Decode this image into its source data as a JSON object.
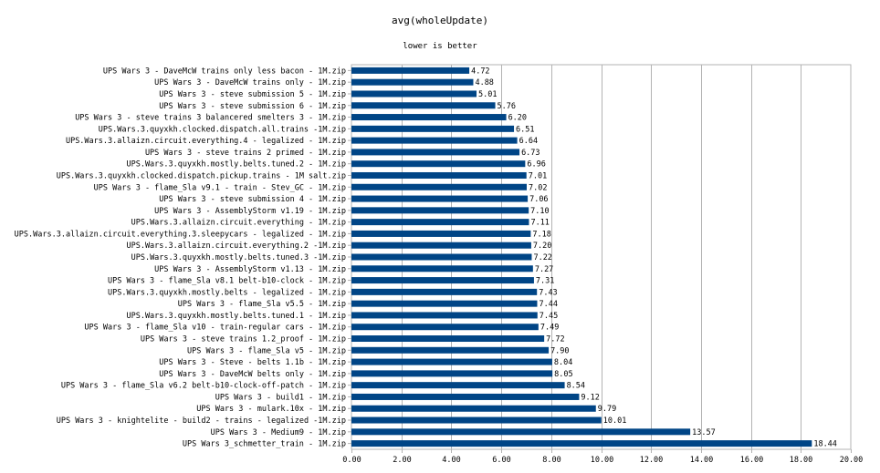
{
  "chart_data": {
    "type": "bar",
    "orientation": "horizontal",
    "title": "avg(wholeUpdate)",
    "subtitle": "lower is better",
    "xlim": [
      0,
      20
    ],
    "xticks": [
      "0.00",
      "2.00",
      "4.00",
      "6.00",
      "8.00",
      "10.00",
      "12.00",
      "14.00",
      "16.00",
      "18.00",
      "20.00"
    ],
    "grid": true,
    "bar_color": "#004586",
    "categories": [
      "UPS Wars 3 - DaveMcW trains only less bacon - 1M.zip",
      "UPS Wars 3 - DaveMcW trains only - 1M.zip",
      "UPS Wars 3 - steve submission 5 - 1M.zip",
      "UPS Wars 3 - steve submission 6 - 1M.zip",
      "UPS Wars 3 - steve trains 3 balancered smelters 3 - 1M.zip",
      "UPS.Wars.3.quyxkh.clocked.dispatch.all.trains -1M.zip",
      "UPS.Wars.3.allaizn.circuit.everything.4 - legalized - 1M.zip",
      "UPS Wars 3 - steve trains 2 primed - 1M.zip",
      "UPS.Wars.3.quyxkh.mostly.belts.tuned.2 - 1M.zip",
      "UPS.Wars.3.quyxkh.clocked.dispatch.pickup.trains - 1M salt.zip",
      "UPS Wars 3 - flame_Sla v9.1 - train - Stev_GC - 1M.zip",
      "UPS Wars 3 - steve submission 4 - 1M.zip",
      "UPS Wars 3 - AssemblyStorm v1.19 - 1M.zip",
      "UPS.Wars.3.allaizn.circuit.everything - 1M.zip",
      "UPS.Wars.3.allaizn.circuit.everything.3.sleepycars - legalized - 1M.zip",
      "UPS.Wars.3.allaizn.circuit.everything.2 -1M.zip",
      "UPS.Wars.3.quyxkh.mostly.belts.tuned.3 -1M.zip",
      "UPS Wars 3 - AssemblyStorm v1.13 - 1M.zip",
      "UPS Wars 3 - flame_Sla v8.1 belt-b10-clock - 1M.zip",
      "UPS.Wars.3.quyxkh.mostly.belts - legalized - 1M.zip",
      "UPS Wars 3 - flame_Sla v5.5 - 1M.zip",
      "UPS.Wars.3.quyxkh.mostly.belts.tuned.1 - 1M.zip",
      "UPS Wars 3 - flame_Sla v10 - train-regular cars - 1M.zip",
      "UPS Wars 3 - steve trains 1.2_proof - 1M.zip",
      "UPS Wars 3 - flame_Sla v5 - 1M.zip",
      "UPS Wars 3 - Steve - belts 1.1b - 1M.zip",
      "UPS Wars 3 - DaveMcW belts only - 1M.zip",
      "UPS Wars 3 - flame_Sla v6.2 belt-b10-clock-off-patch - 1M.zip",
      "UPS Wars 3 - build1 - 1M.zip",
      "UPS Wars 3 - mulark.10x - 1M.zip",
      "UPS Wars 3 - knightelite - build2 - trains - legalized -1M.zip",
      "UPS Wars 3 - Medium9 - 1M.zip",
      "UPS Wars 3_schmetter_train - 1M.zip"
    ],
    "values": [
      4.72,
      4.88,
      5.01,
      5.76,
      6.2,
      6.51,
      6.64,
      6.73,
      6.96,
      7.01,
      7.02,
      7.06,
      7.1,
      7.11,
      7.18,
      7.2,
      7.22,
      7.27,
      7.31,
      7.43,
      7.44,
      7.45,
      7.49,
      7.72,
      7.9,
      8.04,
      8.05,
      8.54,
      9.12,
      9.79,
      10.01,
      13.57,
      18.44
    ],
    "value_labels": [
      "4.72",
      "4.88",
      "5.01",
      "5.76",
      "6.20",
      "6.51",
      "6.64",
      "6.73",
      "6.96",
      "7.01",
      "7.02",
      "7.06",
      "7.10",
      "7.11",
      "7.18",
      "7.20",
      "7.22",
      "7.27",
      "7.31",
      "7.43",
      "7.44",
      "7.45",
      "7.49",
      "7.72",
      "7.90",
      "8.04",
      "8.05",
      "8.54",
      "9.12",
      "9.79",
      "10.01",
      "13.57",
      "18.44"
    ]
  }
}
